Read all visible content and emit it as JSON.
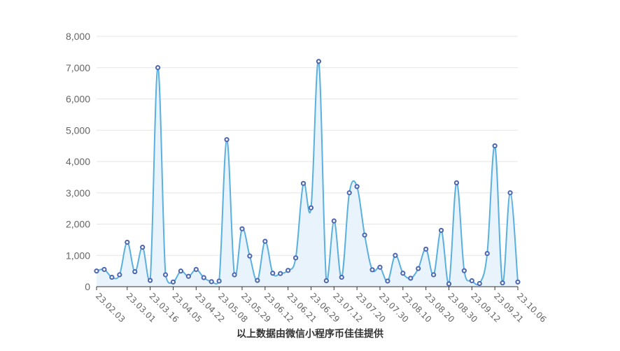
{
  "chart_data": {
    "type": "area",
    "x": [
      "23.02.03",
      "",
      "",
      "",
      "23.03.01",
      "",
      "",
      "23.03.16",
      "",
      "",
      "23.04.05",
      "",
      "",
      "23.04.22",
      "",
      "",
      "23.05.08",
      "",
      "",
      "23.05.29",
      "",
      "",
      "23.06.12",
      "",
      "",
      "23.06.21",
      "",
      "",
      "23.06.29",
      "",
      "",
      "23.07.12",
      "",
      "",
      "23.07.20",
      "",
      "",
      "23.07.30",
      "",
      "",
      "23.08.10",
      "",
      "",
      "23.08.20",
      "",
      "",
      "23.08.30",
      "",
      "",
      "23.09.12",
      "",
      "",
      "23.09.21",
      "",
      "",
      "23.10.06"
    ],
    "values": [
      500,
      550,
      300,
      380,
      1420,
      480,
      1260,
      200,
      7000,
      380,
      150,
      500,
      330,
      550,
      290,
      160,
      180,
      4700,
      380,
      1850,
      980,
      200,
      1450,
      430,
      420,
      520,
      920,
      3300,
      2520,
      7200,
      190,
      2100,
      300,
      3000,
      3200,
      1650,
      540,
      620,
      180,
      1000,
      430,
      270,
      580,
      1200,
      380,
      1800,
      90,
      3320,
      510,
      190,
      100,
      1060,
      4500,
      120,
      3000,
      150
    ],
    "x_tick_labels": [
      "23.02.03",
      "23.03.01",
      "23.03.16",
      "23.04.05",
      "23.04.22",
      "23.05.08",
      "23.05.29",
      "23.06.12",
      "23.06.21",
      "23.06.29",
      "23.07.12",
      "23.07.20",
      "23.07.30",
      "23.08.10",
      "23.08.20",
      "23.08.30",
      "23.09.12",
      "23.09.21",
      "23.10.06"
    ],
    "y_ticks": [
      "0",
      "1,000",
      "2,000",
      "3,000",
      "4,000",
      "5,000",
      "6,000",
      "7,000",
      "8,000"
    ],
    "ylim": [
      0,
      8000
    ],
    "grid": true,
    "line_color": "#5ab0df",
    "area_color": "#e8f3fb",
    "marker_color": "#4b66b0"
  },
  "footer": {
    "note": "以上数据由微信小程序币佳佳提供"
  }
}
